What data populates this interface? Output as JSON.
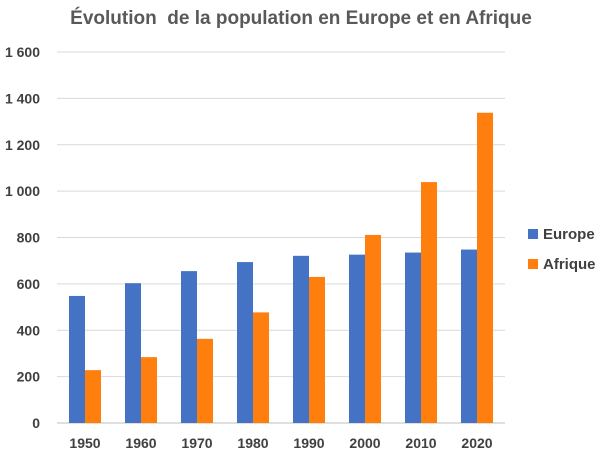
{
  "chart_data": {
    "type": "bar",
    "title": "Évolution  de la population en Europe et en Afrique",
    "categories": [
      "1950",
      "1960",
      "1970",
      "1980",
      "1990",
      "2000",
      "2010",
      "2020"
    ],
    "series": [
      {
        "name": "Europe",
        "color": "#4472C4",
        "values": [
          548,
          603,
          655,
          694,
          721,
          726,
          735,
          748
        ]
      },
      {
        "name": "Afrique",
        "color": "#FF7F0E",
        "values": [
          228,
          284,
          363,
          477,
          630,
          811,
          1039,
          1338
        ]
      }
    ],
    "y_ticks": [
      "0",
      "200",
      "400",
      "600",
      "800",
      "1 000",
      "1 200",
      "1 400",
      "1 600"
    ],
    "ylim": [
      0,
      1600
    ],
    "grid": true,
    "legend_position": "right"
  }
}
